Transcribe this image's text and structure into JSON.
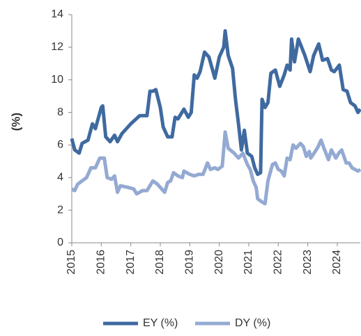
{
  "chart_data": {
    "type": "line",
    "y_label": "(%)",
    "xlim": [
      2015,
      2024.78
    ],
    "xticks": [
      2015,
      2016,
      2017,
      2018,
      2019,
      2020,
      2021,
      2022,
      2023,
      2024
    ],
    "ylim": [
      0,
      14
    ],
    "yticks": [
      0,
      2,
      4,
      6,
      8,
      10,
      12,
      14
    ],
    "series": [
      {
        "name": "EY (%)",
        "color": "#3f6aa0",
        "x": [
          2015.0,
          2015.1,
          2015.25,
          2015.35,
          2015.55,
          2015.7,
          2015.8,
          2016.0,
          2016.05,
          2016.15,
          2016.3,
          2016.45,
          2016.55,
          2016.7,
          2017.0,
          2017.3,
          2017.55,
          2017.65,
          2017.75,
          2017.85,
          2018.0,
          2018.1,
          2018.25,
          2018.4,
          2018.5,
          2018.6,
          2018.8,
          2018.95,
          2019.05,
          2019.15,
          2019.25,
          2019.35,
          2019.5,
          2019.65,
          2019.85,
          2020.0,
          2020.15,
          2020.2,
          2020.3,
          2020.45,
          2020.55,
          2020.65,
          2020.75,
          2020.85,
          2020.95,
          2021.1,
          2021.2,
          2021.3,
          2021.4,
          2021.45,
          2021.55,
          2021.65,
          2021.75,
          2021.9,
          2022.05,
          2022.2,
          2022.3,
          2022.4,
          2022.45,
          2022.55,
          2022.68,
          2022.9,
          2023.08,
          2023.2,
          2023.37,
          2023.5,
          2023.67,
          2023.8,
          2023.9,
          2024.07,
          2024.2,
          2024.33,
          2024.45,
          2024.6,
          2024.7,
          2024.78
        ],
        "values": [
          6.4,
          5.7,
          5.5,
          6.1,
          6.3,
          7.3,
          7.0,
          8.3,
          8.4,
          6.5,
          6.2,
          6.6,
          6.2,
          6.7,
          7.3,
          7.8,
          7.8,
          9.3,
          9.3,
          9.4,
          8.3,
          7.1,
          6.5,
          6.5,
          7.7,
          7.6,
          8.2,
          7.7,
          8.0,
          10.3,
          10.1,
          10.5,
          11.7,
          11.4,
          10.1,
          11.4,
          12.0,
          13.0,
          11.5,
          10.7,
          8.8,
          7.3,
          5.7,
          6.9,
          5.5,
          5.3,
          4.6,
          4.2,
          4.3,
          8.8,
          8.3,
          8.6,
          10.4,
          10.6,
          9.6,
          10.3,
          10.9,
          10.6,
          12.5,
          11.1,
          12.5,
          11.5,
          10.5,
          11.5,
          12.2,
          11.2,
          11.3,
          10.6,
          10.5,
          10.9,
          9.4,
          9.3,
          8.6,
          8.4,
          8.0,
          8.2
        ]
      },
      {
        "name": "DY (%)",
        "color": "#94aad2",
        "x": [
          2015.0,
          2015.1,
          2015.2,
          2015.35,
          2015.5,
          2015.65,
          2015.8,
          2015.95,
          2016.1,
          2016.2,
          2016.35,
          2016.45,
          2016.55,
          2016.65,
          2016.9,
          2017.1,
          2017.2,
          2017.4,
          2017.55,
          2017.75,
          2017.9,
          2018.05,
          2018.15,
          2018.25,
          2018.35,
          2018.45,
          2018.6,
          2018.75,
          2018.8,
          2019.0,
          2019.15,
          2019.3,
          2019.45,
          2019.6,
          2019.7,
          2019.85,
          2019.95,
          2020.1,
          2020.2,
          2020.3,
          2020.5,
          2020.65,
          2020.8,
          2020.95,
          2021.05,
          2021.15,
          2021.25,
          2021.3,
          2021.45,
          2021.55,
          2021.65,
          2021.8,
          2021.9,
          2022.0,
          2022.1,
          2022.2,
          2022.3,
          2022.4,
          2022.5,
          2022.6,
          2022.75,
          2022.85,
          2022.95,
          2023.05,
          2023.1,
          2023.25,
          2023.35,
          2023.45,
          2023.55,
          2023.7,
          2023.8,
          2023.95,
          2024.05,
          2024.15,
          2024.3,
          2024.4,
          2024.5,
          2024.6,
          2024.7,
          2024.78
        ],
        "values": [
          3.3,
          3.2,
          3.6,
          3.8,
          4.0,
          4.6,
          4.6,
          5.2,
          5.2,
          4.0,
          3.9,
          4.1,
          3.1,
          3.5,
          3.4,
          3.3,
          3.0,
          3.2,
          3.2,
          3.8,
          3.6,
          3.3,
          3.1,
          3.7,
          3.8,
          4.3,
          4.1,
          4.0,
          4.4,
          4.2,
          4.1,
          4.2,
          4.2,
          4.9,
          4.5,
          4.6,
          4.5,
          4.7,
          6.8,
          5.8,
          5.5,
          5.2,
          5.5,
          4.8,
          4.5,
          3.8,
          3.4,
          2.7,
          2.5,
          2.4,
          3.8,
          4.8,
          4.9,
          4.5,
          4.4,
          4.1,
          5.2,
          5.1,
          6.0,
          5.8,
          6.1,
          5.9,
          5.3,
          5.6,
          5.2,
          5.6,
          5.9,
          6.3,
          5.8,
          5.1,
          5.7,
          5.2,
          5.5,
          5.7,
          4.9,
          4.9,
          4.6,
          4.5,
          4.4,
          4.5
        ]
      }
    ]
  }
}
